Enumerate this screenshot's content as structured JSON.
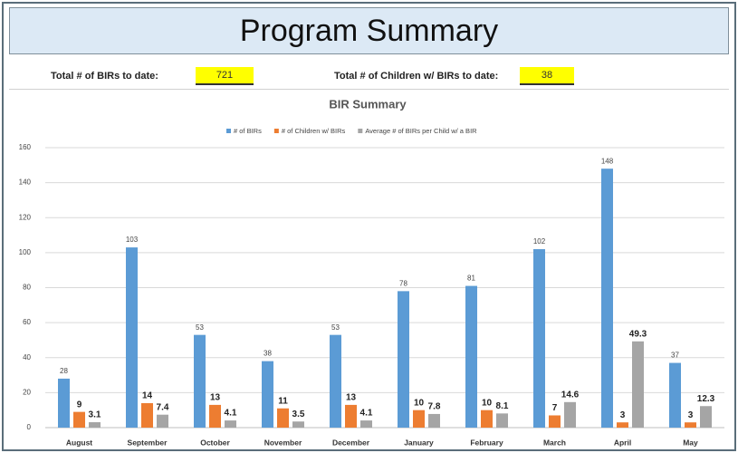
{
  "header": {
    "title": "Program Summary"
  },
  "totals": [
    {
      "label": "Total # of BIRs to date:",
      "value": 721
    },
    {
      "label": "Total # of Children w/ BIRs to date:",
      "value": 38
    }
  ],
  "chart_data": {
    "type": "bar",
    "title": "BIR Summary",
    "categories": [
      "August",
      "September",
      "October",
      "November",
      "December",
      "January",
      "February",
      "March",
      "April",
      "May"
    ],
    "series": [
      {
        "name": "# of BIRs",
        "color": "#5b9bd5",
        "values": [
          28,
          103,
          53,
          38,
          53,
          78,
          81,
          102,
          148,
          37
        ]
      },
      {
        "name": "# of Children w/ BIRs",
        "color": "#ed7d31",
        "values": [
          9,
          14,
          13,
          11,
          13,
          10,
          10,
          7,
          3,
          3
        ]
      },
      {
        "name": "Average # of BIRs  per Child w/ a BIR",
        "color": "#a5a5a5",
        "values": [
          3.1,
          7.4,
          4.1,
          3.5,
          4.1,
          7.8,
          8.1,
          14.6,
          49.3,
          12.3
        ]
      }
    ],
    "ylim": [
      0,
      160
    ],
    "yticks": [
      0,
      20,
      40,
      60,
      80,
      100,
      120,
      140,
      160
    ],
    "grid": true,
    "legend": "top"
  }
}
